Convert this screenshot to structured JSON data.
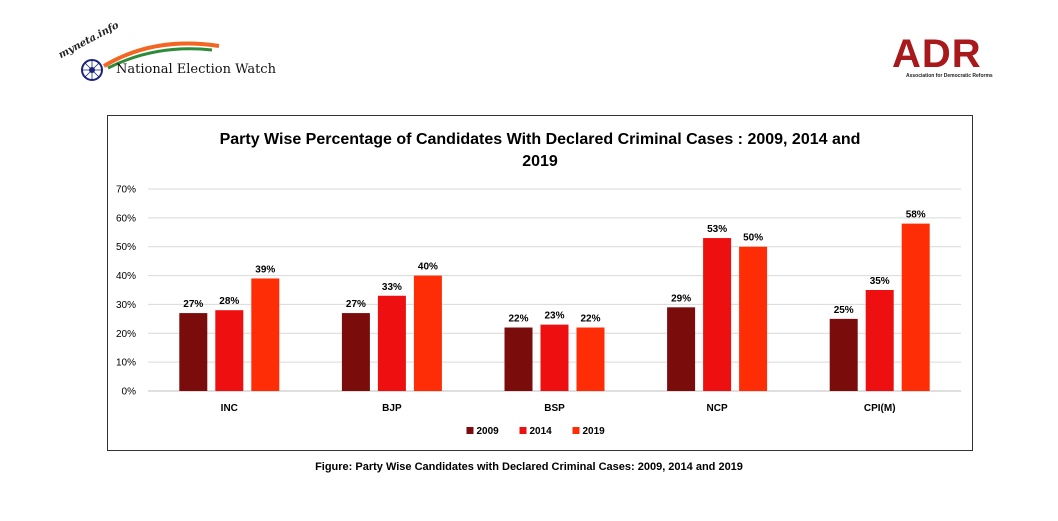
{
  "header": {
    "left_logo_small": "myneta.info",
    "left_logo_text": "National Election Watch",
    "right_logo_text": "ADR",
    "right_logo_sub": "Association for Democratic Reforms"
  },
  "caption": "Figure: Party Wise Candidates with Declared Criminal Cases: 2009, 2014 and 2019",
  "colors": {
    "s2009": "#7b0c0c",
    "s2014": "#ee1010",
    "s2019": "#ff2d06",
    "grid": "#d9d9d9"
  },
  "chart_data": {
    "type": "bar",
    "title": "Party Wise Percentage of Candidates With Declared Criminal Cases : 2009, 2014 and 2019",
    "categories": [
      "INC",
      "BJP",
      "BSP",
      "NCP",
      "CPI(M)"
    ],
    "series": [
      {
        "name": "2009",
        "values": [
          27,
          27,
          22,
          29,
          25
        ]
      },
      {
        "name": "2014",
        "values": [
          28,
          33,
          23,
          53,
          35
        ]
      },
      {
        "name": "2019",
        "values": [
          39,
          40,
          22,
          50,
          58
        ]
      }
    ],
    "ylim": [
      0,
      70
    ],
    "yticks": [
      0,
      10,
      20,
      30,
      40,
      50,
      60,
      70
    ],
    "ytick_labels": [
      "0%",
      "10%",
      "20%",
      "30%",
      "40%",
      "50%",
      "60%",
      "70%"
    ],
    "value_suffix": "%",
    "grid": true,
    "legend": "bottom",
    "xlabel": "",
    "ylabel": ""
  }
}
